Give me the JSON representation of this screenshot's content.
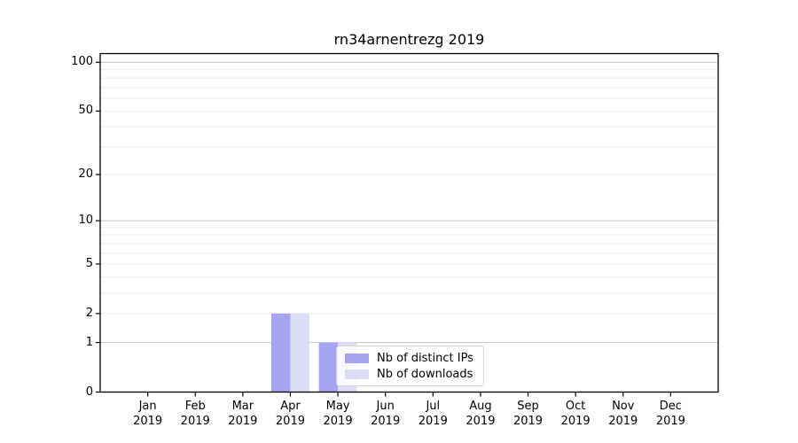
{
  "chart_data": {
    "type": "bar",
    "title": "rn34arnentrezg 2019",
    "categories": [
      "Jan",
      "Feb",
      "Mar",
      "Apr",
      "May",
      "Jun",
      "Jul",
      "Aug",
      "Sep",
      "Oct",
      "Nov",
      "Dec"
    ],
    "xtick_year": "2019",
    "series": [
      {
        "name": "Nb of distinct IPs",
        "color": "#a5a5f0",
        "values": [
          0,
          0,
          0,
          2,
          1,
          0,
          0,
          0,
          0,
          0,
          0,
          0
        ]
      },
      {
        "name": "Nb of downloads",
        "color": "#dcdcf7",
        "values": [
          0,
          0,
          0,
          2,
          1,
          0,
          0,
          0,
          0,
          0,
          0,
          0
        ]
      }
    ],
    "yscale": "log1p",
    "ylim": [
      0,
      113
    ],
    "yticks": [
      0,
      1,
      2,
      5,
      10,
      20,
      50,
      100
    ],
    "gridlines": {
      "major": [
        1,
        10,
        100
      ],
      "minor": [
        2,
        3,
        4,
        5,
        6,
        7,
        8,
        9,
        20,
        30,
        40,
        50,
        60,
        70,
        80,
        90
      ]
    },
    "legend": {
      "position": "lower-center",
      "items": [
        "Nb of distinct IPs",
        "Nb of downloads"
      ]
    },
    "colors": {
      "axis": "#000000",
      "major_grid": "#c8c8c8",
      "minor_grid": "#ededed",
      "background": "#ffffff",
      "legend_border": "#d4d4d4"
    }
  }
}
